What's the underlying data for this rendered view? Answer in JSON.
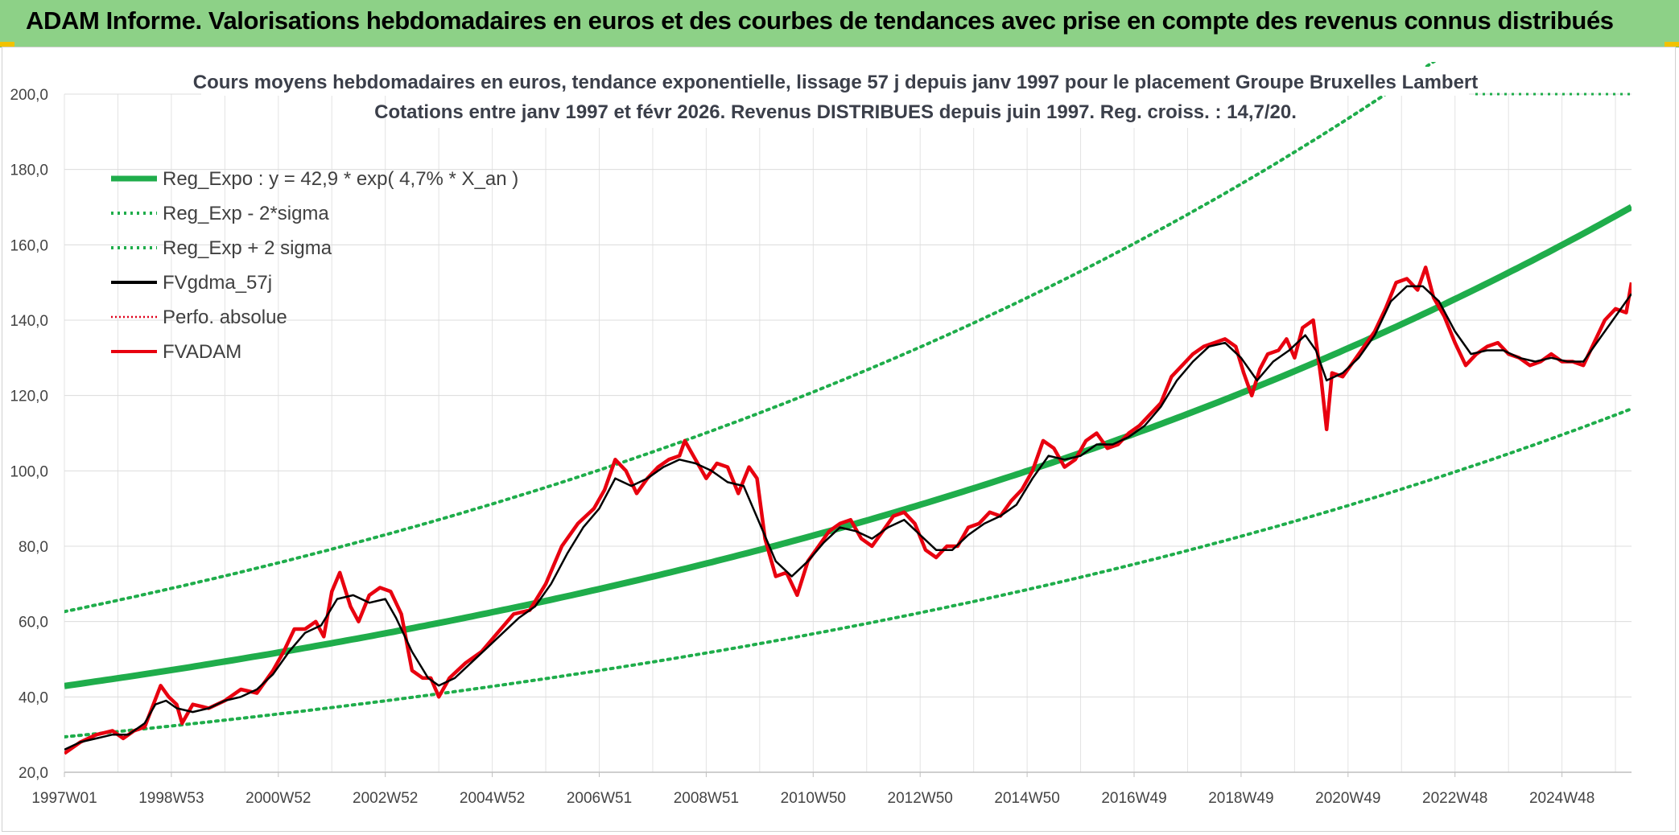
{
  "header": {
    "title": "ADAM Informe. Valorisations hebdomadaires en euros et des courbes de tendances avec prise en compte des revenus connus distribués",
    "accent_color": "#8dd187"
  },
  "chart_data": {
    "type": "line",
    "title_line1": "Cours moyens hebdomadaires en euros, tendance exponentielle, lissage 57 j depuis janv 1997 pour le placement Groupe Bruxelles Lambert",
    "title_line2": "Cotations entre janv 1997 et févr 2026. Revenus DISTRIBUES depuis juin 1997. Reg. croiss. : 14,7/20.",
    "xlabel": "",
    "ylabel": "",
    "ylim": [
      20,
      200
    ],
    "xlim": [
      1997.0,
      2026.3
    ],
    "y_ticks": [
      "200,0",
      "180,0",
      "160,0",
      "140,0",
      "120,0",
      "100,0",
      "80,0",
      "60,0",
      "40,0",
      "20,0"
    ],
    "x_ticks": [
      {
        "label": "1997W01",
        "x": 1997.0
      },
      {
        "label": "1998W53",
        "x": 1999.0
      },
      {
        "label": "2000W52",
        "x": 2001.0
      },
      {
        "label": "2002W52",
        "x": 2003.0
      },
      {
        "label": "2004W52",
        "x": 2005.0
      },
      {
        "label": "2006W51",
        "x": 2007.0
      },
      {
        "label": "2008W51",
        "x": 2009.0
      },
      {
        "label": "2010W50",
        "x": 2011.0
      },
      {
        "label": "2012W50",
        "x": 2013.0
      },
      {
        "label": "2014W50",
        "x": 2015.0
      },
      {
        "label": "2016W49",
        "x": 2017.0
      },
      {
        "label": "2018W49",
        "x": 2019.0
      },
      {
        "label": "2020W49",
        "x": 2021.0
      },
      {
        "label": "2022W48",
        "x": 2023.0
      },
      {
        "label": "2024W48",
        "x": 2025.0
      }
    ],
    "regression": {
      "a": 42.9,
      "rate": 0.047,
      "x0": 1997.0,
      "low_factor": 0.685,
      "high_factor": 1.46
    },
    "legend_position": "top-left",
    "legend": [
      {
        "label": "Reg_Expo : y = 42,9 * exp( 4,7% *  X_an )",
        "color": "#1fad4b",
        "style": "solid-thick"
      },
      {
        "label": "Reg_Exp - 2*sigma",
        "color": "#1fad4b",
        "style": "dotted"
      },
      {
        "label": "Reg_Exp + 2 sigma",
        "color": "#1fad4b",
        "style": "dotted"
      },
      {
        "label": "FVgdma_57j",
        "color": "#000000",
        "style": "solid"
      },
      {
        "label": "Perfo. absolue",
        "color": "#e0001a",
        "style": "dotted-thin"
      },
      {
        "label": "FVADAM",
        "color": "#e8000f",
        "style": "solid"
      }
    ],
    "series": [
      {
        "name": "FVADAM",
        "color": "#e8000f",
        "points": [
          [
            1997.0,
            25
          ],
          [
            1997.3,
            28
          ],
          [
            1997.6,
            30
          ],
          [
            1997.9,
            31
          ],
          [
            1998.1,
            29
          ],
          [
            1998.3,
            31
          ],
          [
            1998.5,
            32
          ],
          [
            1998.8,
            43
          ],
          [
            1998.95,
            40
          ],
          [
            1999.1,
            38
          ],
          [
            1999.2,
            33
          ],
          [
            1999.4,
            38
          ],
          [
            1999.7,
            37
          ],
          [
            2000.0,
            39
          ],
          [
            2000.3,
            42
          ],
          [
            2000.6,
            41
          ],
          [
            2000.9,
            47
          ],
          [
            2001.1,
            52
          ],
          [
            2001.3,
            58
          ],
          [
            2001.5,
            58
          ],
          [
            2001.7,
            60
          ],
          [
            2001.85,
            56
          ],
          [
            2002.0,
            68
          ],
          [
            2002.15,
            73
          ],
          [
            2002.35,
            64
          ],
          [
            2002.5,
            60
          ],
          [
            2002.7,
            67
          ],
          [
            2002.9,
            69
          ],
          [
            2003.1,
            68
          ],
          [
            2003.3,
            62
          ],
          [
            2003.5,
            47
          ],
          [
            2003.7,
            45
          ],
          [
            2003.85,
            45
          ],
          [
            2004.0,
            40
          ],
          [
            2004.2,
            45
          ],
          [
            2004.5,
            49
          ],
          [
            2004.8,
            52
          ],
          [
            2005.1,
            57
          ],
          [
            2005.4,
            62
          ],
          [
            2005.7,
            63
          ],
          [
            2006.0,
            70
          ],
          [
            2006.3,
            80
          ],
          [
            2006.6,
            86
          ],
          [
            2006.9,
            90
          ],
          [
            2007.1,
            95
          ],
          [
            2007.3,
            103
          ],
          [
            2007.5,
            100
          ],
          [
            2007.7,
            94
          ],
          [
            2007.9,
            98
          ],
          [
            2008.1,
            101
          ],
          [
            2008.3,
            103
          ],
          [
            2008.5,
            104
          ],
          [
            2008.6,
            108
          ],
          [
            2008.8,
            103
          ],
          [
            2009.0,
            98
          ],
          [
            2009.2,
            102
          ],
          [
            2009.4,
            101
          ],
          [
            2009.6,
            94
          ],
          [
            2009.8,
            101
          ],
          [
            2009.95,
            98
          ],
          [
            2010.1,
            82
          ],
          [
            2010.3,
            72
          ],
          [
            2010.5,
            73
          ],
          [
            2010.7,
            67
          ],
          [
            2010.9,
            76
          ],
          [
            2011.1,
            80
          ],
          [
            2011.3,
            84
          ],
          [
            2011.5,
            86
          ],
          [
            2011.7,
            87
          ],
          [
            2011.9,
            82
          ],
          [
            2012.1,
            80
          ],
          [
            2012.3,
            84
          ],
          [
            2012.5,
            88
          ],
          [
            2012.7,
            89
          ],
          [
            2012.9,
            86
          ],
          [
            2013.1,
            79
          ],
          [
            2013.3,
            77
          ],
          [
            2013.5,
            80
          ],
          [
            2013.7,
            80
          ],
          [
            2013.9,
            85
          ],
          [
            2014.1,
            86
          ],
          [
            2014.3,
            89
          ],
          [
            2014.5,
            88
          ],
          [
            2014.7,
            92
          ],
          [
            2014.9,
            95
          ],
          [
            2015.1,
            100
          ],
          [
            2015.3,
            108
          ],
          [
            2015.5,
            106
          ],
          [
            2015.7,
            101
          ],
          [
            2015.9,
            103
          ],
          [
            2016.1,
            108
          ],
          [
            2016.3,
            110
          ],
          [
            2016.5,
            106
          ],
          [
            2016.7,
            107
          ],
          [
            2016.9,
            110
          ],
          [
            2017.1,
            112
          ],
          [
            2017.3,
            115
          ],
          [
            2017.5,
            118
          ],
          [
            2017.7,
            125
          ],
          [
            2017.9,
            128
          ],
          [
            2018.1,
            131
          ],
          [
            2018.3,
            133
          ],
          [
            2018.5,
            134
          ],
          [
            2018.7,
            135
          ],
          [
            2018.9,
            133
          ],
          [
            2019.05,
            126
          ],
          [
            2019.2,
            120
          ],
          [
            2019.35,
            127
          ],
          [
            2019.5,
            131
          ],
          [
            2019.7,
            132
          ],
          [
            2019.85,
            135
          ],
          [
            2020.0,
            130
          ],
          [
            2020.15,
            138
          ],
          [
            2020.35,
            140
          ],
          [
            2020.5,
            124
          ],
          [
            2020.6,
            111
          ],
          [
            2020.7,
            126
          ],
          [
            2020.9,
            125
          ],
          [
            2021.1,
            129
          ],
          [
            2021.3,
            133
          ],
          [
            2021.5,
            137
          ],
          [
            2021.7,
            143
          ],
          [
            2021.9,
            150
          ],
          [
            2022.1,
            151
          ],
          [
            2022.3,
            148
          ],
          [
            2022.45,
            154
          ],
          [
            2022.6,
            146
          ],
          [
            2022.8,
            141
          ],
          [
            2023.0,
            134
          ],
          [
            2023.2,
            128
          ],
          [
            2023.4,
            131
          ],
          [
            2023.6,
            133
          ],
          [
            2023.8,
            134
          ],
          [
            2024.0,
            131
          ],
          [
            2024.2,
            130
          ],
          [
            2024.4,
            128
          ],
          [
            2024.6,
            129
          ],
          [
            2024.8,
            131
          ],
          [
            2025.0,
            129
          ],
          [
            2025.2,
            129
          ],
          [
            2025.4,
            128
          ],
          [
            2025.6,
            134
          ],
          [
            2025.8,
            140
          ],
          [
            2026.0,
            143
          ],
          [
            2026.2,
            142
          ],
          [
            2026.3,
            150
          ]
        ]
      },
      {
        "name": "FVgdma_57j",
        "color": "#000000",
        "points": [
          [
            1997.0,
            26
          ],
          [
            1997.3,
            28
          ],
          [
            1997.6,
            29
          ],
          [
            1997.9,
            30
          ],
          [
            1998.2,
            30
          ],
          [
            1998.5,
            33
          ],
          [
            1998.7,
            38
          ],
          [
            1998.9,
            39
          ],
          [
            1999.1,
            37
          ],
          [
            1999.4,
            36
          ],
          [
            1999.7,
            37
          ],
          [
            2000.0,
            39
          ],
          [
            2000.3,
            40
          ],
          [
            2000.6,
            42
          ],
          [
            2000.9,
            46
          ],
          [
            2001.2,
            52
          ],
          [
            2001.5,
            57
          ],
          [
            2001.8,
            59
          ],
          [
            2002.1,
            66
          ],
          [
            2002.4,
            67
          ],
          [
            2002.7,
            65
          ],
          [
            2003.0,
            66
          ],
          [
            2003.2,
            61
          ],
          [
            2003.5,
            52
          ],
          [
            2003.8,
            45
          ],
          [
            2004.0,
            43
          ],
          [
            2004.3,
            45
          ],
          [
            2004.6,
            49
          ],
          [
            2004.9,
            53
          ],
          [
            2005.2,
            57
          ],
          [
            2005.5,
            61
          ],
          [
            2005.8,
            64
          ],
          [
            2006.1,
            70
          ],
          [
            2006.4,
            78
          ],
          [
            2006.7,
            85
          ],
          [
            2007.0,
            90
          ],
          [
            2007.3,
            98
          ],
          [
            2007.6,
            96
          ],
          [
            2007.9,
            98
          ],
          [
            2008.2,
            101
          ],
          [
            2008.5,
            103
          ],
          [
            2008.8,
            102
          ],
          [
            2009.1,
            100
          ],
          [
            2009.4,
            97
          ],
          [
            2009.7,
            96
          ],
          [
            2010.0,
            86
          ],
          [
            2010.3,
            76
          ],
          [
            2010.6,
            72
          ],
          [
            2010.9,
            76
          ],
          [
            2011.2,
            81
          ],
          [
            2011.5,
            85
          ],
          [
            2011.8,
            84
          ],
          [
            2012.1,
            82
          ],
          [
            2012.4,
            85
          ],
          [
            2012.7,
            87
          ],
          [
            2013.0,
            83
          ],
          [
            2013.3,
            79
          ],
          [
            2013.6,
            79
          ],
          [
            2013.9,
            83
          ],
          [
            2014.2,
            86
          ],
          [
            2014.5,
            88
          ],
          [
            2014.8,
            91
          ],
          [
            2015.1,
            98
          ],
          [
            2015.4,
            104
          ],
          [
            2015.7,
            103
          ],
          [
            2016.0,
            104
          ],
          [
            2016.3,
            107
          ],
          [
            2016.6,
            107
          ],
          [
            2016.9,
            109
          ],
          [
            2017.2,
            112
          ],
          [
            2017.5,
            117
          ],
          [
            2017.8,
            124
          ],
          [
            2018.1,
            129
          ],
          [
            2018.4,
            133
          ],
          [
            2018.7,
            134
          ],
          [
            2019.0,
            130
          ],
          [
            2019.3,
            124
          ],
          [
            2019.6,
            129
          ],
          [
            2019.9,
            132
          ],
          [
            2020.2,
            136
          ],
          [
            2020.4,
            132
          ],
          [
            2020.6,
            124
          ],
          [
            2020.9,
            126
          ],
          [
            2021.2,
            130
          ],
          [
            2021.5,
            136
          ],
          [
            2021.8,
            145
          ],
          [
            2022.1,
            149
          ],
          [
            2022.4,
            149
          ],
          [
            2022.7,
            145
          ],
          [
            2023.0,
            137
          ],
          [
            2023.3,
            131
          ],
          [
            2023.6,
            132
          ],
          [
            2023.9,
            132
          ],
          [
            2024.2,
            130
          ],
          [
            2024.5,
            129
          ],
          [
            2024.8,
            130
          ],
          [
            2025.1,
            129
          ],
          [
            2025.4,
            129
          ],
          [
            2025.7,
            135
          ],
          [
            2026.0,
            141
          ],
          [
            2026.3,
            147
          ]
        ]
      }
    ]
  }
}
